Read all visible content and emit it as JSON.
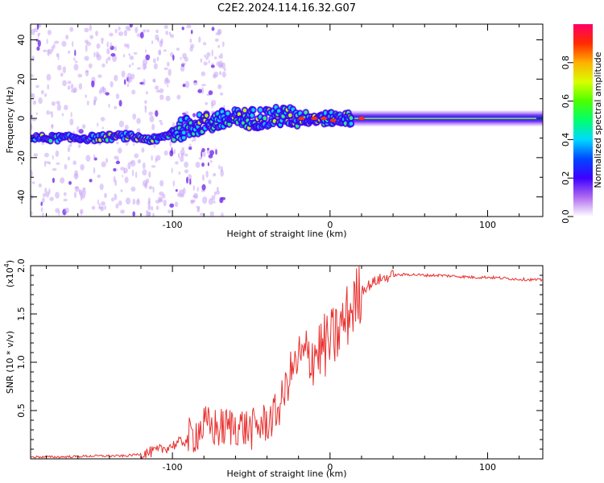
{
  "figure_title": "C2E2.2024.114.16.32.G07",
  "chart_data": [
    {
      "type": "heatmap",
      "title": "C2E2.2024.114.16.32.G07",
      "xlabel": "Height of straight line (km)",
      "ylabel": "Frequency (Hz)",
      "xlim": [
        -190,
        135
      ],
      "ylim": [
        -50,
        48
      ],
      "xticks": [
        -100,
        0,
        100
      ],
      "xtick_labels": [
        "-100",
        "0",
        "100"
      ],
      "yticks": [
        -40,
        -20,
        0,
        20,
        40
      ],
      "ytick_labels": [
        "-40",
        "-20",
        "0",
        "20",
        "40"
      ],
      "colorbar": {
        "label": "Normalized spectral amplitude",
        "range": [
          0,
          1
        ],
        "ticks": [
          0.0,
          0.2,
          0.4,
          0.6,
          0.8
        ],
        "tick_labels": [
          "0.0",
          "0.2",
          "0.4",
          "0.6",
          "0.8"
        ]
      },
      "ridge": {
        "description_points": [
          {
            "x": -190,
            "freq": -10
          },
          {
            "x": -150,
            "freq": -10
          },
          {
            "x": -130,
            "freq": -9
          },
          {
            "x": -110,
            "freq": -11
          },
          {
            "x": -90,
            "freq": -4
          },
          {
            "x": -70,
            "freq": -1
          },
          {
            "x": -50,
            "freq": 0
          },
          {
            "x": -30,
            "freq": 1
          },
          {
            "x": -10,
            "freq": 0
          },
          {
            "x": 10,
            "freq": 0
          },
          {
            "x": 50,
            "freq": 0
          },
          {
            "x": 100,
            "freq": 0
          },
          {
            "x": 135,
            "freq": 0
          }
        ]
      }
    },
    {
      "type": "line",
      "xlabel": "Height of straight line (km)",
      "ylabel": "SNR (10 * v/v)",
      "y_multiplier_label": "(x10",
      "y_multiplier_exp": "4",
      "y_multiplier_close": ")",
      "xlim": [
        -190,
        135
      ],
      "ylim": [
        0,
        2.0
      ],
      "xticks": [
        -100,
        0,
        100
      ],
      "xtick_labels": [
        "-100",
        "0",
        "100"
      ],
      "yticks": [
        0.5,
        1.0,
        1.5,
        2.0
      ],
      "ytick_labels": [
        "0.5",
        "1.0",
        "1.5",
        "2.0"
      ],
      "line_color": "#e8312f",
      "series": [
        {
          "name": "SNR",
          "x": [
            -190,
            -170,
            -150,
            -130,
            -120,
            -110,
            -100,
            -90,
            -85,
            -80,
            -70,
            -60,
            -50,
            -40,
            -35,
            -30,
            -25,
            -20,
            -15,
            -10,
            -5,
            0,
            5,
            10,
            15,
            20,
            30,
            40,
            50,
            60,
            70,
            80,
            90,
            100,
            110,
            120,
            135
          ],
          "y": [
            0.02,
            0.02,
            0.03,
            0.03,
            0.05,
            0.08,
            0.14,
            0.2,
            0.28,
            0.34,
            0.31,
            0.35,
            0.3,
            0.38,
            0.45,
            0.62,
            0.9,
            1.0,
            1.05,
            1.1,
            1.15,
            1.2,
            1.3,
            1.45,
            1.6,
            1.75,
            1.85,
            1.9,
            1.91,
            1.9,
            1.9,
            1.89,
            1.88,
            1.88,
            1.87,
            1.86,
            1.85
          ]
        }
      ]
    }
  ]
}
